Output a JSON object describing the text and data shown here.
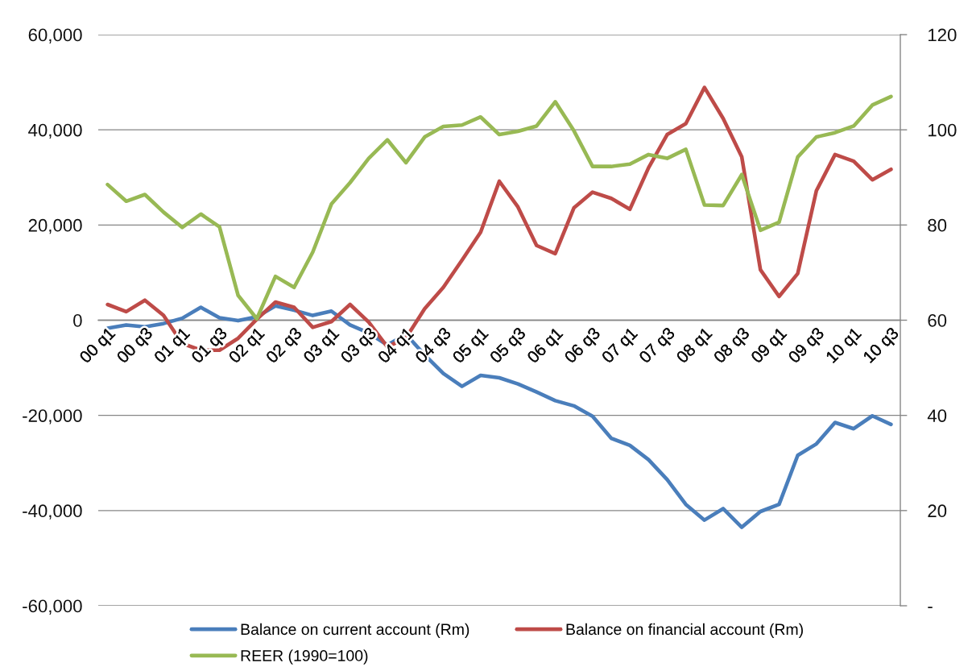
{
  "chart_data": {
    "type": "line",
    "categories": [
      "00 q1",
      null,
      "00 q3",
      null,
      "01 q1",
      null,
      "01 q3",
      null,
      "02 q1",
      null,
      "02 q3",
      null,
      "03 q1",
      null,
      "03 q3",
      null,
      "04 q1",
      null,
      "04 q3",
      null,
      "05 q1",
      null,
      "05 q3",
      null,
      "06 q1",
      null,
      "06 q3",
      null,
      "07 q1",
      null,
      "07 q3",
      null,
      "08 q1",
      null,
      "08 q3",
      null,
      "09 q1",
      null,
      "09 q3",
      null,
      "10 q1",
      null,
      "10 q3"
    ],
    "series": [
      {
        "name": "Balance on current account (Rm)",
        "color": "#4a7ebb",
        "values": [
          -1700,
          -1000,
          -1400,
          -700,
          400,
          2700,
          500,
          -100,
          700,
          3000,
          2100,
          1000,
          1900,
          -1000,
          -2700,
          -5200,
          -3000,
          -7300,
          -11200,
          -13900,
          -11600,
          -12100,
          -13400,
          -15100,
          -16900,
          -18000,
          -20200,
          -24800,
          -26300,
          -29300,
          -33500,
          -38700,
          -42000,
          -39600,
          -43500,
          -40200,
          -38700,
          -28400,
          -26000,
          -21500,
          -22800,
          -20100,
          -21900
        ]
      },
      {
        "name": "Balance on financial account (Rm)",
        "color": "#be4b48",
        "values": [
          3300,
          1800,
          4200,
          1000,
          -4900,
          -6300,
          -6300,
          -3800,
          200,
          3800,
          2700,
          -1500,
          -300,
          3300,
          -400,
          -5600,
          -3700,
          2400,
          6900,
          12600,
          18500,
          29200,
          23800,
          15700,
          14000,
          23600,
          26900,
          25600,
          23300,
          32000,
          39000,
          41300,
          48900,
          42400,
          34300,
          10600,
          5000,
          9800,
          27200,
          34800,
          33400,
          29500,
          31700
        ]
      },
      {
        "name": "REER (1990=100)",
        "color": "#98b954",
        "axis": "y2",
        "values": [
          88.5,
          85.0,
          86.4,
          82.7,
          79.5,
          82.3,
          79.6,
          65.2,
          60.3,
          69.2,
          66.9,
          74.3,
          84.4,
          88.9,
          94.0,
          97.9,
          93.1,
          98.5,
          100.7,
          101.0,
          102.7,
          99.0,
          99.7,
          100.8,
          105.9,
          99.8,
          92.3,
          92.3,
          92.8,
          94.8,
          94.0,
          95.9,
          84.2,
          84.1,
          90.6,
          78.9,
          80.6,
          94.3,
          98.5,
          99.4,
          100.8,
          105.2,
          107.0
        ]
      }
    ],
    "ylim": [
      -60000,
      60000
    ],
    "yticks": [
      {
        "value": -60000,
        "label": "-60,000"
      },
      {
        "value": -40000,
        "label": "-40,000"
      },
      {
        "value": -20000,
        "label": "-20,000"
      },
      0,
      {
        "value": 20000,
        "label": "20,000"
      },
      {
        "value": 40000,
        "label": "40,000"
      },
      {
        "value": 60000,
        "label": "60,000"
      }
    ],
    "y2lim": [
      0,
      120
    ],
    "y2ticks": [
      {
        "value": 0,
        "label": "-"
      },
      20,
      40,
      60,
      80,
      100,
      120
    ],
    "grid": "y",
    "legend": "bottom"
  }
}
